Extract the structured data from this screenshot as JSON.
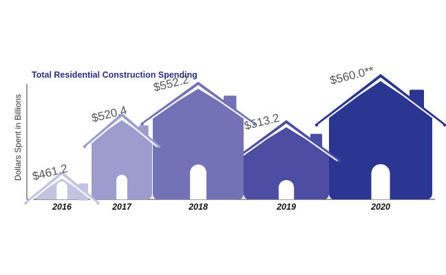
{
  "chart_data": {
    "type": "bar",
    "title": "Total Residential Construction Spending",
    "ylabel": "Dollars Spent in Billions",
    "xlabel": "",
    "categories": [
      "2016",
      "2017",
      "2018",
      "2019",
      "2020"
    ],
    "values": [
      461.2,
      520.4,
      552.2,
      513.2,
      560.0
    ],
    "value_labels": [
      "$461.2",
      "$520.4",
      "$552.2",
      "$513.2",
      "$560.0**"
    ],
    "colors": [
      "#c4c4e2",
      "#9d9ccf",
      "#7472b6",
      "#4d4ea3",
      "#2b3592"
    ],
    "title_color": "#2b2e8c",
    "axis_color": "#333333",
    "grid": false,
    "legend": "none"
  }
}
